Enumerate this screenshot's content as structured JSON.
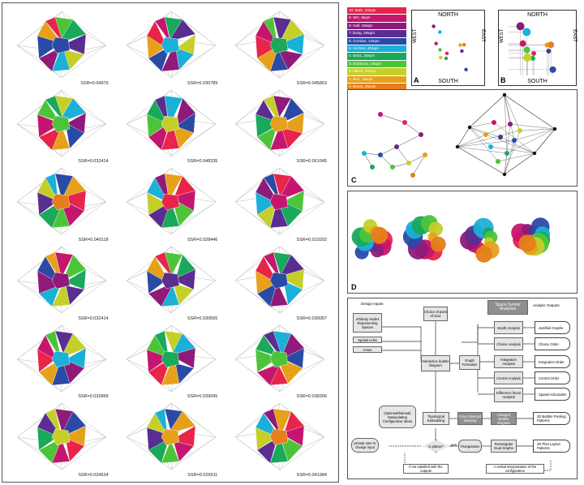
{
  "ssr_values": [
    "SSR=0.04976",
    "SSR=0.030789",
    "SSR=0.045863",
    "SSR=0.032414",
    "SSR=0.048335",
    "SSR=0.061045",
    "SSR=0.040118",
    "SSR=0.028446",
    "SSR=0.019202",
    "SSR=0.032414",
    "SSR=0.030565",
    "SSR=0.030057",
    "SSR=0.032868",
    "SSR=0.039095",
    "SSR=0.038306",
    "SSR=0.024634",
    "SSR=0.026911",
    "SSR=0.041984"
  ],
  "legend": [
    {
      "label": "10: Bath, 10sqm",
      "color": "#e8244a"
    },
    {
      "label": "9: WC, 8sqm",
      "color": "#c4166e"
    },
    {
      "label": "8: Hall, 18sqm",
      "color": "#8f1a7a"
    },
    {
      "label": "7: living, 28sqm",
      "color": "#5a2d91"
    },
    {
      "label": "6: Corridor, 14sqm",
      "color": "#2a4aa5"
    },
    {
      "label": "5: Kitchen, 20sqm",
      "color": "#1ab0d8"
    },
    {
      "label": "4: Bed1, 26sqm",
      "color": "#1aa85a"
    },
    {
      "label": "3: Entrance, 14sqm",
      "color": "#4cc43a"
    },
    {
      "label": "2: MBed, 20sqm",
      "color": "#c5cf2a"
    },
    {
      "label": "1: Bed, 15sqm",
      "color": "#e6a01a"
    },
    {
      "label": "0: library, 25sqm",
      "color": "#e67e1a"
    }
  ],
  "orient": {
    "north": "NORTH",
    "south": "SOUTH",
    "west": "WEST",
    "east": "EAST",
    "tag_a": "A",
    "tag_b": "B"
  },
  "labels": {
    "c": "C",
    "d": "D"
  },
  "flow": {
    "design_inputs": "Design Inputs",
    "analytic_outputs": "Analytic Outputs",
    "space_syntax": "Space Syntax Analyses",
    "arbitrary": "Arbitrary Nodes Representing Spaces",
    "spatial_links": "Spatial Links",
    "areas": "Areas",
    "choice_view": "Choice of point of view",
    "interactive": "Interactive bubble Diagram",
    "graph_formation": "Graph Formation",
    "depth": "Depth Analysis",
    "choice": "Choice Analysis",
    "integration": "Integration Analysis",
    "control": "Control Analysis",
    "difference": "Difference factor Analysis",
    "justified": "Justified Graphs",
    "choice_order": "Choice Order",
    "integration_order": "Integration Order",
    "control_order": "Control Order",
    "spatial_art": "Spatial Articulation",
    "optional": "(Optional/Manual) Manipulating Configurative Ideas",
    "topological": "Topological Embedding",
    "force": "Force Directed Drawing",
    "charged": "Charged Bubble Diagram",
    "bubble2d": "2D Bubble Packing Patterns",
    "planar": "is planar?",
    "yes": "yes",
    "triangulation": "Triangulation",
    "rect_dual": "Rectangular Dual Graphs",
    "plan2d": "2D Plan Layout Patterns",
    "prompt": "prompt user to change input",
    "not_satisfied": "if not satisfied with the outputs",
    "verbal": "A verbal interpretation of the configuration"
  }
}
